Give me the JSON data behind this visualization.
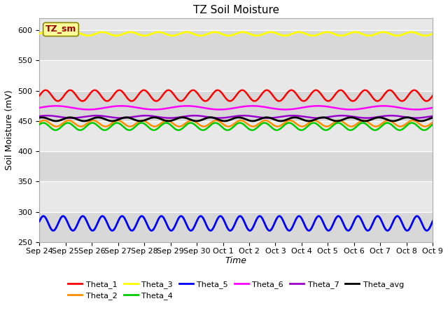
{
  "title": "TZ Soil Moisture",
  "xlabel": "Time",
  "ylabel": "Soil Moisture (mV)",
  "ylim": [
    250,
    620
  ],
  "yticks": [
    250,
    300,
    350,
    400,
    450,
    500,
    550,
    600
  ],
  "bg_color": "#e8e8e8",
  "band_color": "#d0d0d0",
  "xtick_labels": [
    "Sep 24",
    "Sep 25",
    "Sep 26",
    "Sep 27",
    "Sep 28",
    "Sep 29",
    "Sep 30",
    "Oct 1",
    "Oct 2",
    "Oct 3",
    "Oct 4",
    "Oct 5",
    "Oct 6",
    "Oct 7",
    "Oct 8",
    "Oct 9"
  ],
  "series": [
    {
      "name": "Theta_1",
      "color": "#ff0000",
      "base": 492,
      "amp": 9,
      "freq": 16,
      "phase": 0.0,
      "lw": 1.8
    },
    {
      "name": "Theta_2",
      "color": "#ff8c00",
      "base": 446,
      "amp": 5,
      "freq": 16,
      "phase": 0.4,
      "lw": 1.8
    },
    {
      "name": "Theta_3",
      "color": "#ffff00",
      "base": 594,
      "amp": 3,
      "freq": 14,
      "phase": 0.1,
      "lw": 2.0
    },
    {
      "name": "Theta_4",
      "color": "#00cc00",
      "base": 441,
      "amp": 6,
      "freq": 16,
      "phase": 0.6,
      "lw": 1.8
    },
    {
      "name": "Theta_5",
      "color": "#0000ff",
      "base": 281,
      "amp": 12,
      "freq": 20,
      "phase": 0.3,
      "lw": 2.0
    },
    {
      "name": "Theta_6",
      "color": "#ff00ff",
      "base": 472,
      "amp": 3,
      "freq": 6,
      "phase": 0.0,
      "lw": 1.8
    },
    {
      "name": "Theta_7",
      "color": "#9900cc",
      "base": 457,
      "amp": 2,
      "freq": 8,
      "phase": 0.6,
      "lw": 1.8
    },
    {
      "name": "Theta_avg",
      "color": "#000000",
      "base": 453,
      "amp": 3,
      "freq": 14,
      "phase": 1.0,
      "lw": 2.0
    }
  ],
  "tz_sm_label": "TZ_sm",
  "tz_sm_bg": "#ffff99",
  "tz_sm_fg": "#990000",
  "n_points": 600,
  "legend_ncol": 6,
  "figsize": [
    6.4,
    4.8
  ],
  "dpi": 100
}
